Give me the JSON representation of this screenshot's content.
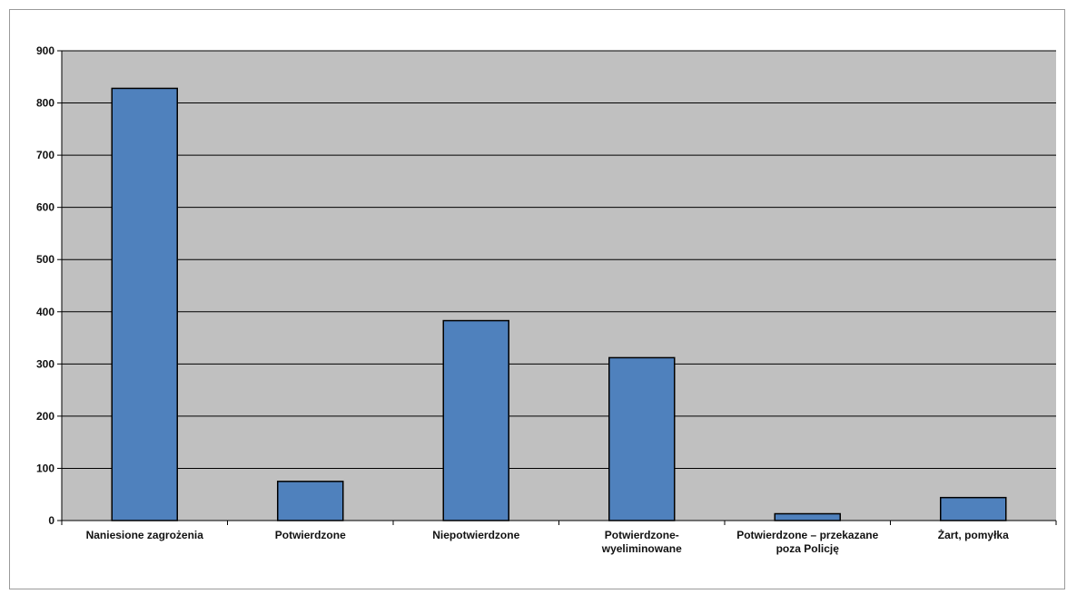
{
  "chart_data": {
    "type": "bar",
    "categories": [
      [
        "Naniesione zagrożenia"
      ],
      [
        "Potwierdzone"
      ],
      [
        "Niepotwierdzone"
      ],
      [
        "Potwierdzone-",
        "wyeliminowane"
      ],
      [
        "Potwierdzone – przekazane",
        "poza Policję"
      ],
      [
        "Żart, pomyłka"
      ]
    ],
    "values": [
      828,
      75,
      383,
      312,
      13,
      44
    ],
    "ylim": [
      0,
      900
    ],
    "yticks": [
      0,
      100,
      200,
      300,
      400,
      500,
      600,
      700,
      800,
      900
    ],
    "grid": true,
    "legend": "none",
    "colors": {
      "bar": "#4f81bd",
      "bar_border": "#000000",
      "plot_area": "#c0c0c0",
      "gridline": "#000000"
    }
  }
}
